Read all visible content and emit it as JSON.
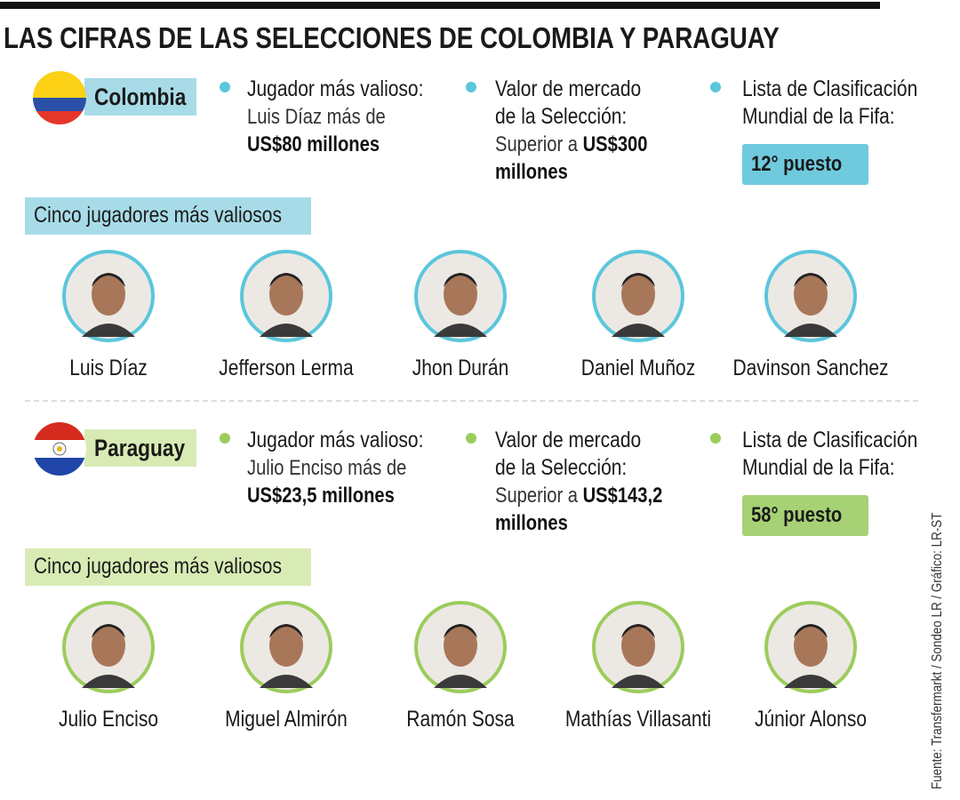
{
  "title": "LAS CIFRAS DE LAS SELECCIONES DE COLOMBIA Y PARAGUAY",
  "sections": [
    {
      "country": "Colombia",
      "stats": [
        {
          "label": "Jugador más valioso:",
          "text": "Luis Díaz más de",
          "highlight": "US$80 millones"
        },
        {
          "label": "Valor de mercado de la Selección:",
          "text": "Superior a",
          "highlight": "US$300 millones"
        }
      ],
      "ranking": {
        "label": "Lista de Clasificación Mundial de la Fifa:",
        "value": "12° puesto"
      },
      "players_heading": "Cinco jugadores más valiosos",
      "players": [
        "Luis Díaz",
        "Jefferson Lerma",
        "Jhon Durán",
        "Daniel Muñoz",
        "Davinson Sanchez"
      ]
    },
    {
      "country": "Paraguay",
      "stats": [
        {
          "label": "Jugador más valioso:",
          "text": "Julio Enciso más de",
          "highlight": "US$23,5 millones"
        },
        {
          "label": "Valor de mercado de la Selección:",
          "text": "Superior a",
          "highlight": "US$143,2 millones"
        }
      ],
      "ranking": {
        "label": "Lista de Clasificación Mundial de la Fifa:",
        "value": "58° puesto"
      },
      "players_heading": "Cinco jugadores más valiosos",
      "players": [
        "Julio Enciso",
        "Miguel Almirón",
        "Ramón Sosa",
        "Mathías Villasanti",
        "Júnior Alonso"
      ]
    }
  ],
  "source": "Fuente: Transfermarkt / Sondeo LR / Gráfico: LR-ST"
}
